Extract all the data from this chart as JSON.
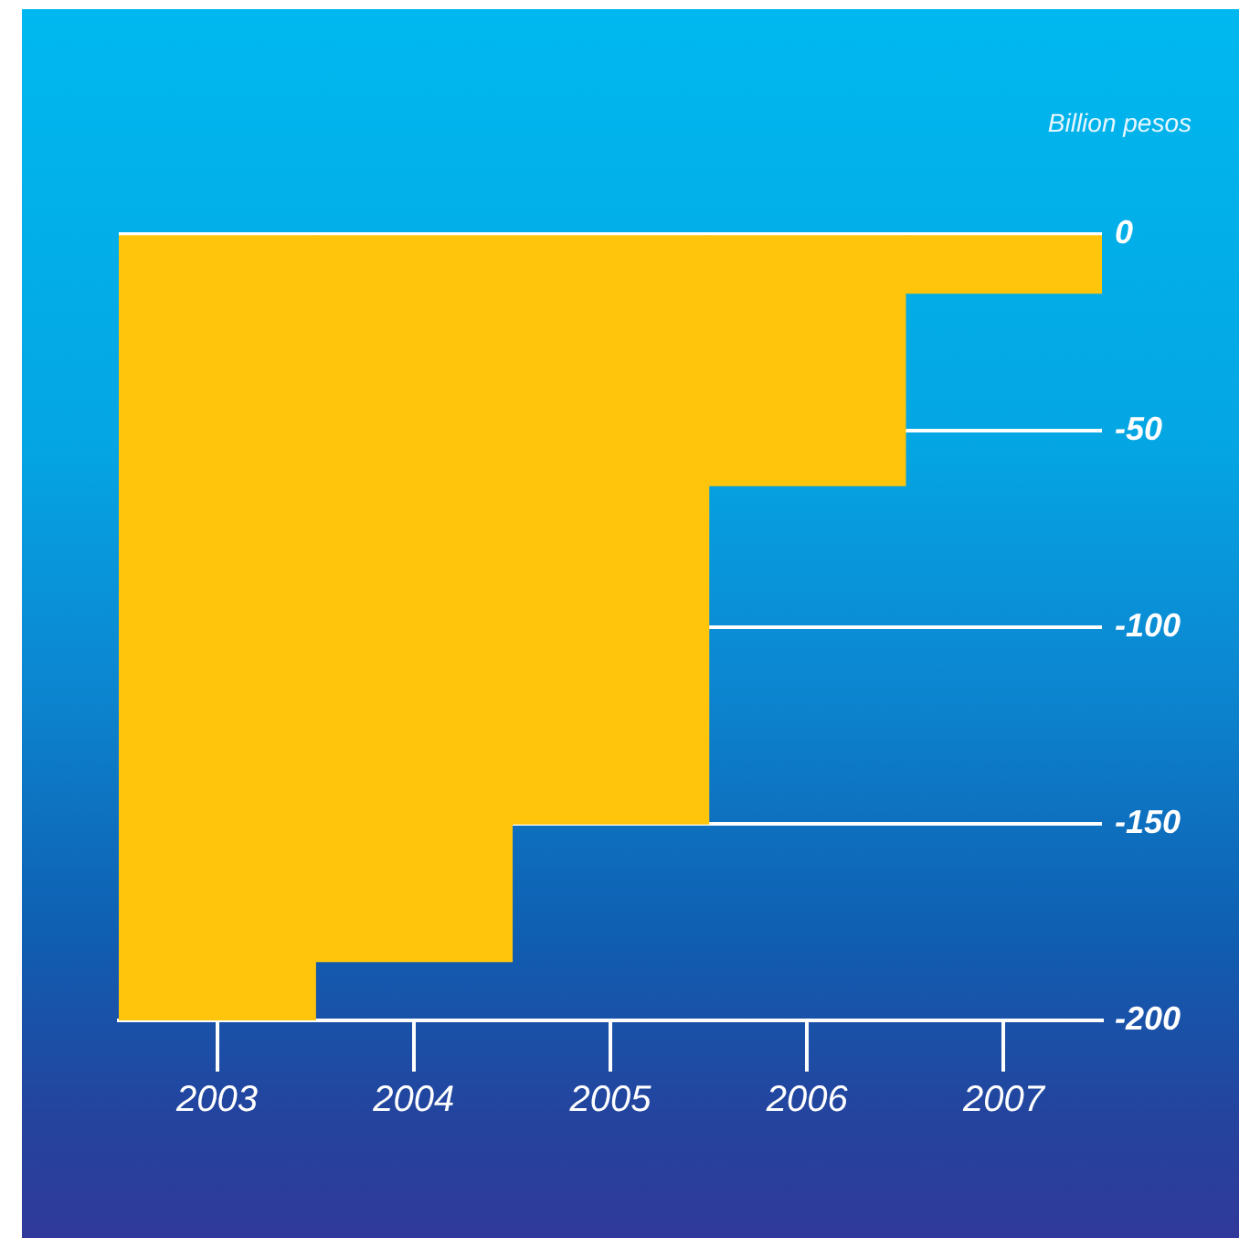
{
  "chart_data": {
    "type": "bar",
    "ylabel": "Billion pesos",
    "categories": [
      "2003",
      "2004",
      "2005",
      "2006",
      "2007"
    ],
    "values": [
      -200,
      -185,
      -150,
      -64,
      -15
    ],
    "color": "#ffc40c",
    "ylim": [
      -200,
      0
    ],
    "yticks": [
      0,
      -50,
      -100,
      -150,
      -200
    ],
    "grid": "y"
  }
}
